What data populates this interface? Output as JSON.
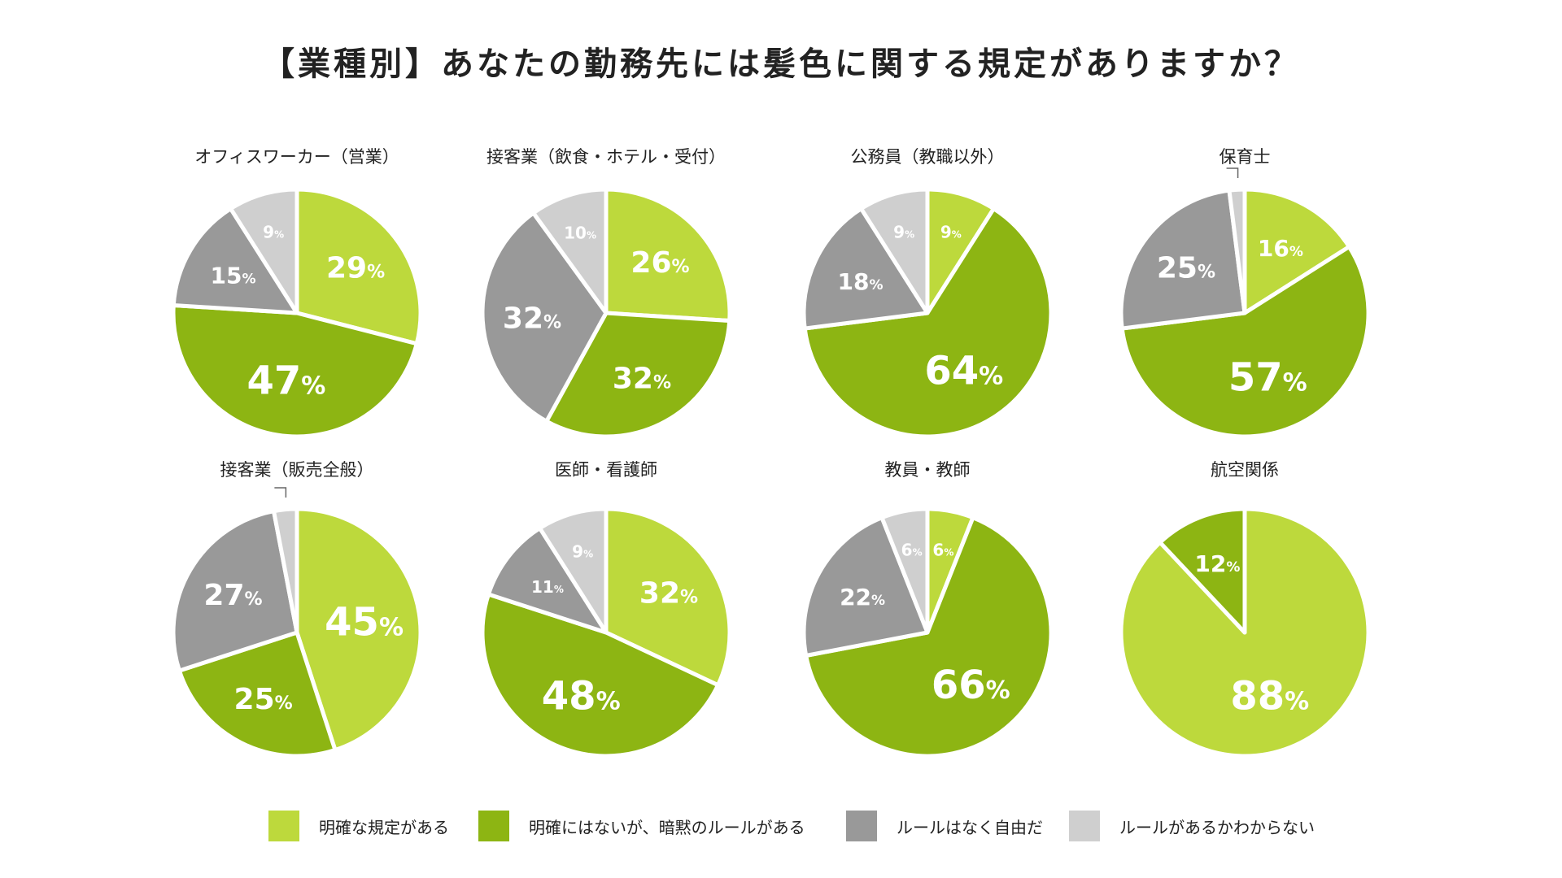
{
  "title": "【業種別】あなたの勤務先には髪色に関する規定がありますか？",
  "colors": {
    "explicit": "#bdd93c",
    "implicit": "#8db513",
    "free": "#999999",
    "unknown": "#cfcfcf",
    "text_light": "#ffffff",
    "text_dark": "#333333"
  },
  "legend": [
    {
      "key": "explicit",
      "label": "明確な規定がある"
    },
    {
      "key": "implicit",
      "label": "明確にはないが、暗黙のルールがある"
    },
    {
      "key": "free",
      "label": "ルールはなく自由だ"
    },
    {
      "key": "unknown",
      "label": "ルールがあるかわからない"
    }
  ],
  "chart_data": [
    {
      "type": "pie",
      "title": "オフィスワーカー（営業）",
      "order": [
        "explicit",
        "implicit",
        "free",
        "unknown"
      ],
      "values": [
        29,
        47,
        15,
        9
      ]
    },
    {
      "type": "pie",
      "title": "接客業（飲食・ホテル・受付）",
      "order": [
        "explicit",
        "implicit",
        "free",
        "unknown"
      ],
      "values": [
        26,
        32,
        32,
        10
      ]
    },
    {
      "type": "pie",
      "title": "公務員（教職以外）",
      "order": [
        "explicit",
        "implicit",
        "free",
        "unknown"
      ],
      "values": [
        9,
        64,
        18,
        9
      ]
    },
    {
      "type": "pie",
      "title": "保育士",
      "order": [
        "explicit",
        "implicit",
        "free",
        "unknown"
      ],
      "values": [
        16,
        57,
        25,
        2
      ]
    },
    {
      "type": "pie",
      "title": "接客業（販売全般）",
      "order": [
        "explicit",
        "implicit",
        "free",
        "unknown"
      ],
      "values": [
        45,
        25,
        27,
        3
      ]
    },
    {
      "type": "pie",
      "title": "医師・看護師",
      "order": [
        "explicit",
        "implicit",
        "free",
        "unknown"
      ],
      "values": [
        32,
        48,
        11,
        9
      ]
    },
    {
      "type": "pie",
      "title": "教員・教師",
      "order": [
        "explicit",
        "implicit",
        "free",
        "unknown"
      ],
      "values": [
        6,
        66,
        22,
        6
      ]
    },
    {
      "type": "pie",
      "title": "航空関係",
      "order": [
        "explicit",
        "implicit",
        "free",
        "unknown"
      ],
      "values": [
        88,
        12,
        0,
        0
      ]
    }
  ]
}
